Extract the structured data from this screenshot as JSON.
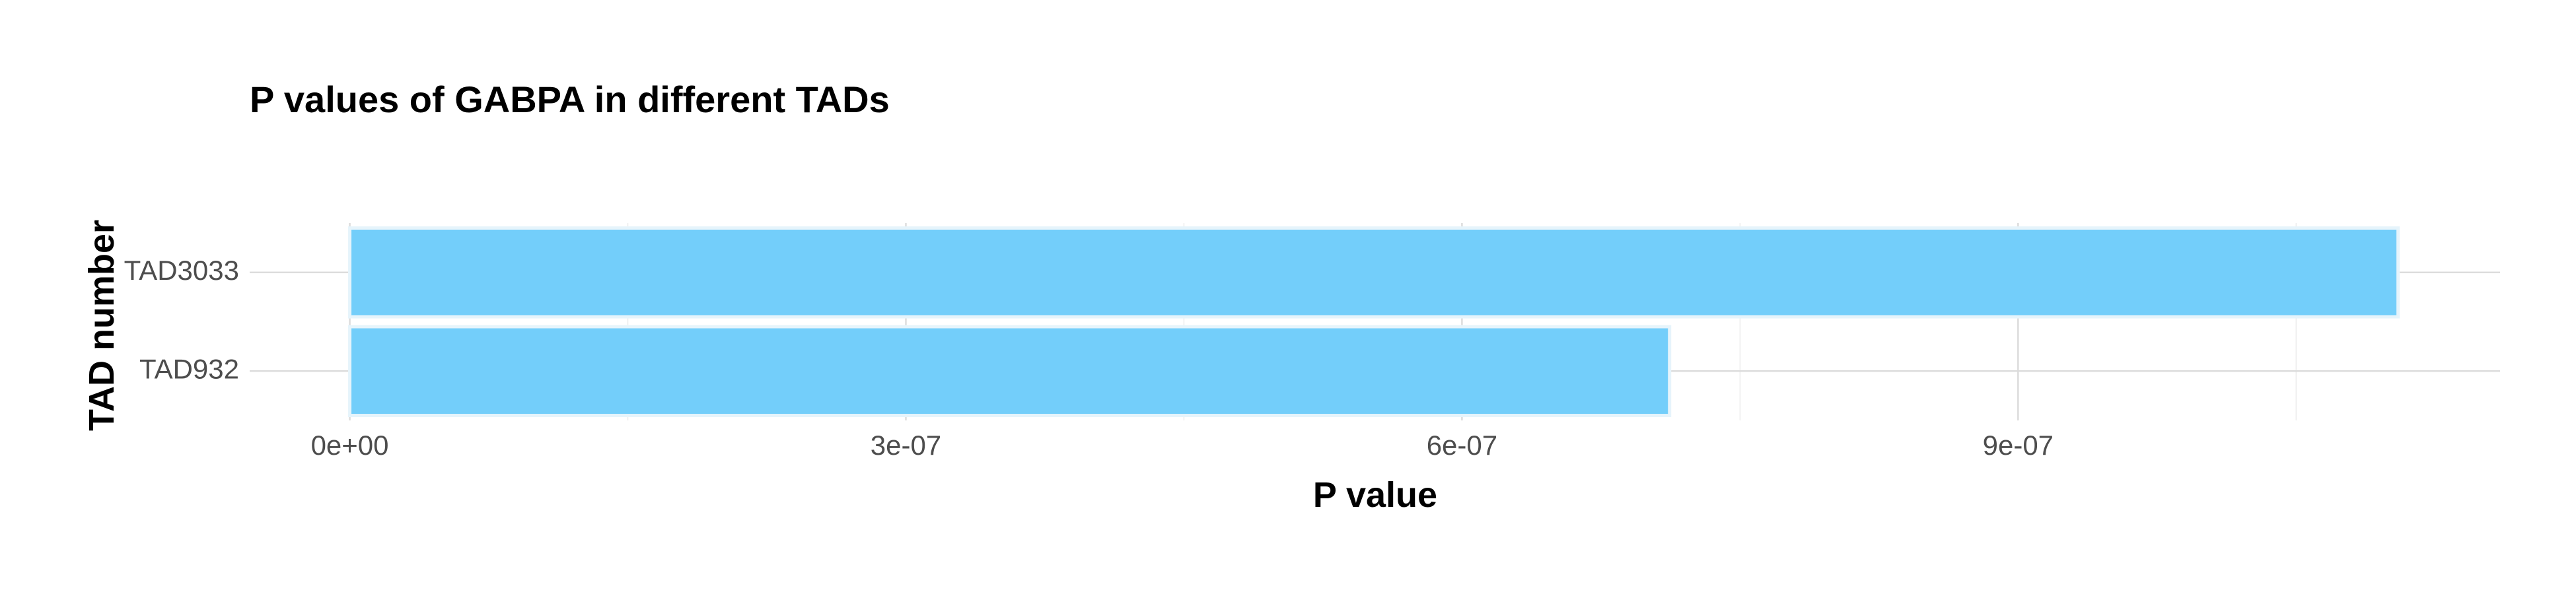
{
  "chart_data": {
    "type": "bar",
    "orientation": "horizontal",
    "title": "P values of GABPA in different TADs",
    "xlabel": "P value",
    "ylabel": "TAD number",
    "categories": [
      "TAD3033",
      "TAD932"
    ],
    "values": [
      1.105e-06,
      7.12e-07
    ],
    "x_ticks": [
      0,
      3e-07,
      6e-07,
      9e-07
    ],
    "x_tick_labels": [
      "0e+00",
      "3e-07",
      "6e-07",
      "9e-07"
    ],
    "xlim": [
      -5.4e-08,
      1.16e-06
    ],
    "grid": true,
    "legend": "none",
    "bar_color": "#73cefa",
    "bar_edge_color": "#e6f4fb"
  }
}
